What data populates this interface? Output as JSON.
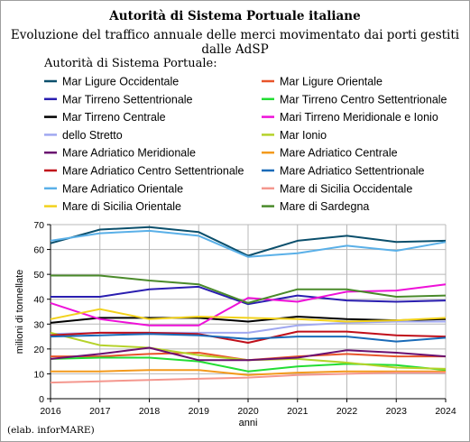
{
  "chart_data": {
    "type": "line",
    "title": "Autorità di Sistema Portuale italiane",
    "subtitle": "Evoluzione del traffico annuale delle merci movimentato dai porti gestiti dalle AdSP",
    "legend_title": "Autorità di Sistema Portuale:",
    "legend_placement": "top",
    "xlabel": "anni",
    "ylabel": "milioni di tonnellate",
    "x": [
      2016,
      2017,
      2018,
      2019,
      2020,
      2021,
      2022,
      2023,
      2024
    ],
    "x_tick_labels": [
      "2016",
      "2017",
      "2018",
      "2019",
      "2020",
      "2021",
      "2022",
      "2023",
      "2024"
    ],
    "ylim": [
      0,
      70
    ],
    "y_ticks": [
      0,
      10,
      20,
      30,
      40,
      50,
      60,
      70
    ],
    "y_tick_labels": [
      "0",
      "10",
      "20",
      "30",
      "40",
      "50",
      "60",
      "70"
    ],
    "grid": true,
    "series": [
      {
        "name": "Mar Ligure Occidentale",
        "color": "#0b4f6c",
        "values": [
          62.5,
          68,
          69,
          67,
          57.5,
          63.5,
          65.5,
          63,
          63.5
        ]
      },
      {
        "name": "Mar Ligure Orientale",
        "color": "#e8542a",
        "values": [
          17,
          17,
          18,
          18.5,
          15.5,
          17,
          18,
          17,
          17
        ]
      },
      {
        "name": "Mar Tirreno Settentrionale",
        "color": "#2a1eb0",
        "values": [
          41,
          41,
          44,
          45,
          38,
          41.5,
          39.5,
          39,
          39.5
        ]
      },
      {
        "name": "Mar Tirreno Centro Settentrionale",
        "color": "#22dd33",
        "values": [
          16,
          16.5,
          16.5,
          15,
          11,
          13,
          14,
          13.5,
          11.5
        ]
      },
      {
        "name": "Mar Tirreno Centrale",
        "color": "#000000",
        "values": [
          30.5,
          32.5,
          32.5,
          32.5,
          31,
          33,
          32,
          31.5,
          32
        ]
      },
      {
        "name": "Mari Tirreno Meridionale e Ionio",
        "color": "#ee11d8",
        "values": [
          38.5,
          32,
          29.5,
          29.5,
          40.5,
          39,
          43,
          43.5,
          46
        ]
      },
      {
        "name": "dello Stretto",
        "color": "#a0a8f0",
        "values": [
          26,
          26.5,
          26.5,
          26.5,
          26.5,
          29.5,
          30.5,
          31,
          31
        ]
      },
      {
        "name": "Mar Ionio",
        "color": "#b5d22a",
        "values": [
          26.5,
          21.5,
          20.5,
          17.5,
          15.5,
          16,
          14.5,
          12.5,
          12
        ]
      },
      {
        "name": "Mare Adriatico Meridionale",
        "color": "#6a1070",
        "values": [
          16,
          18,
          20.5,
          15.5,
          15.5,
          16.5,
          19.5,
          18.5,
          17
        ]
      },
      {
        "name": "Mare Adriatico Centrale",
        "color": "#f39a1c",
        "values": [
          11,
          11,
          11.5,
          11.5,
          9.5,
          10.5,
          11,
          11,
          11
        ]
      },
      {
        "name": "Mare Adriatico Centro Settentrionale",
        "color": "#c00f1a",
        "values": [
          25.5,
          26.5,
          26.5,
          26,
          22.5,
          27,
          27,
          25.5,
          25
        ]
      },
      {
        "name": "Mare Adriatico Settentrionale",
        "color": "#1a6bb8",
        "values": [
          25,
          25.5,
          26,
          25.5,
          24,
          25,
          25,
          23,
          24.5
        ]
      },
      {
        "name": "Mare Adriatico Orientale",
        "color": "#5ab0e8",
        "values": [
          63.5,
          66.5,
          67.5,
          65.5,
          57,
          58.5,
          61.5,
          59.5,
          63
        ]
      },
      {
        "name": "Mare di Sicilia Occidentale",
        "color": "#f4978e",
        "values": [
          6.5,
          7,
          7.5,
          8,
          8.5,
          9.5,
          10,
          10.5,
          10.5
        ]
      },
      {
        "name": "Mare di Sicilia Orientale",
        "color": "#f2d21c",
        "values": [
          32,
          36,
          32,
          33,
          32.5,
          32,
          31,
          31.5,
          32.5
        ]
      },
      {
        "name": "Mare di Sardegna",
        "color": "#4a8a2a",
        "values": [
          49.5,
          49.5,
          47.5,
          46,
          38.5,
          44,
          44,
          41,
          41.5
        ]
      }
    ],
    "credit": "(elab. inforMARE)"
  }
}
